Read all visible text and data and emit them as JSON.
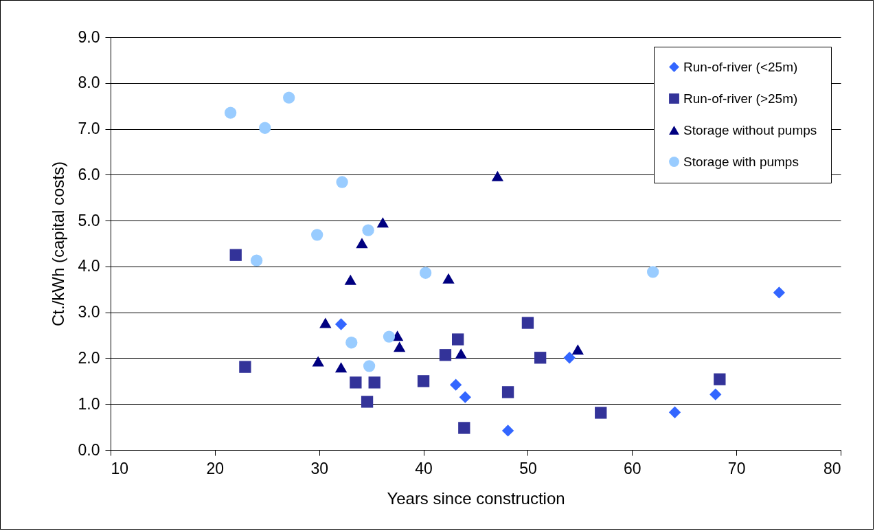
{
  "chart_data": {
    "type": "scatter",
    "xlabel": "Years since construction",
    "ylabel": "Ct./kWh (capital costs)",
    "xlim": [
      10,
      80
    ],
    "xticks": [
      10,
      20,
      30,
      40,
      50,
      60,
      70,
      80
    ],
    "ylim": [
      0,
      9
    ],
    "yticks": [
      {
        "value": 0,
        "label": "0.0"
      },
      {
        "value": 1,
        "label": "1.0"
      },
      {
        "value": 2,
        "label": "2.0"
      },
      {
        "value": 3,
        "label": "3.0"
      },
      {
        "value": 4,
        "label": "4.0"
      },
      {
        "value": 5,
        "label": "5.0"
      },
      {
        "value": 6,
        "label": "6.0"
      },
      {
        "value": 7,
        "label": "7.0"
      },
      {
        "value": 8,
        "label": "8.0"
      },
      {
        "value": 9,
        "label": "9.0"
      }
    ],
    "grid": "y",
    "legend": "top right",
    "series": [
      {
        "name": "Run-of-river (<25m)",
        "color": "#3366ff",
        "marker": "diamond",
        "x": [
          32.1,
          43.1,
          44.0,
          48.1,
          54.0,
          64.1,
          68.0,
          74.1
        ],
        "values": [
          2.74,
          1.42,
          1.15,
          0.42,
          2.01,
          0.82,
          1.21,
          3.43
        ]
      },
      {
        "name": "Run-of-river (>25m)",
        "color": "#333399",
        "marker": "square",
        "x": [
          22.0,
          22.9,
          33.5,
          35.3,
          34.6,
          40.0,
          42.1,
          43.3,
          43.9,
          48.1,
          50.0,
          51.2,
          57.0,
          68.4
        ],
        "values": [
          4.25,
          1.81,
          1.47,
          1.47,
          1.05,
          1.5,
          2.07,
          2.41,
          0.48,
          1.26,
          2.77,
          2.01,
          0.81,
          1.54
        ]
      },
      {
        "name": "Storage without pumps",
        "color": "#000080",
        "marker": "triangle",
        "x": [
          47.1,
          36.1,
          34.1,
          33.0,
          42.4,
          30.6,
          29.9,
          32.1,
          37.5,
          37.7,
          43.6,
          54.8
        ],
        "values": [
          5.97,
          4.96,
          4.51,
          3.71,
          3.74,
          2.77,
          1.93,
          1.8,
          2.49,
          2.25,
          2.1,
          2.19
        ]
      },
      {
        "name": "Storage with pumps",
        "color": "#99ccff",
        "marker": "circle",
        "x": [
          21.5,
          24.8,
          27.1,
          32.2,
          29.8,
          34.7,
          24.0,
          40.2,
          33.1,
          36.7,
          34.8,
          62.0
        ],
        "values": [
          7.35,
          7.02,
          7.68,
          5.84,
          4.69,
          4.79,
          4.13,
          3.86,
          2.34,
          2.47,
          1.83,
          3.88
        ]
      }
    ]
  }
}
